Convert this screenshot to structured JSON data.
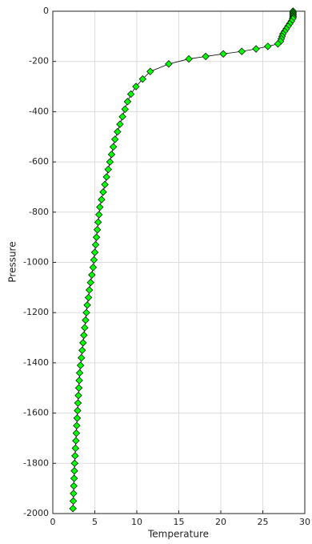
{
  "chart_data": {
    "type": "line",
    "xlabel": "Temperature",
    "ylabel": "Pressure",
    "xlim": [
      0,
      30
    ],
    "xticks": [
      0,
      5,
      10,
      15,
      20,
      25,
      30
    ],
    "ylim": [
      -2000,
      0
    ],
    "yticks": [
      -2000,
      -1800,
      -1600,
      -1400,
      -1200,
      -1000,
      -800,
      -600,
      -400,
      -200,
      0
    ],
    "grid": true,
    "series": [
      {
        "color": "#00ff00",
        "line_color": "#000000",
        "x": [
          28.6,
          28.6,
          28.6,
          28.6,
          28.6,
          28.6,
          28.55,
          28.4,
          28.2,
          28.0,
          27.8,
          27.6,
          27.4,
          27.3,
          27.2,
          27.1,
          26.8,
          25.6,
          24.2,
          22.5,
          20.3,
          18.2,
          16.2,
          13.8,
          11.6,
          10.7,
          9.9,
          9.3,
          8.9,
          8.6,
          8.3,
          8.0,
          7.7,
          7.4,
          7.2,
          7.0,
          6.8,
          6.6,
          6.4,
          6.2,
          6.0,
          5.8,
          5.6,
          5.5,
          5.4,
          5.3,
          5.2,
          5.1,
          5.0,
          4.9,
          4.8,
          4.65,
          4.5,
          4.35,
          4.25,
          4.1,
          4.0,
          3.9,
          3.8,
          3.7,
          3.6,
          3.5,
          3.4,
          3.3,
          3.2,
          3.15,
          3.1,
          3.05,
          3.0,
          2.95,
          2.9,
          2.85,
          2.8,
          2.75,
          2.7,
          2.65,
          2.6,
          2.57,
          2.54,
          2.5,
          2.47,
          2.44,
          2.4
        ],
        "y": [
          0,
          -5,
          -10,
          -15,
          -20,
          -25,
          -30,
          -40,
          -50,
          -60,
          -70,
          -80,
          -90,
          -100,
          -110,
          -120,
          -130,
          -140,
          -150,
          -160,
          -170,
          -180,
          -190,
          -210,
          -240,
          -270,
          -300,
          -330,
          -360,
          -390,
          -420,
          -450,
          -480,
          -510,
          -540,
          -570,
          -600,
          -630,
          -660,
          -690,
          -720,
          -750,
          -780,
          -810,
          -840,
          -870,
          -900,
          -930,
          -960,
          -990,
          -1020,
          -1050,
          -1080,
          -1110,
          -1140,
          -1170,
          -1200,
          -1230,
          -1260,
          -1290,
          -1320,
          -1350,
          -1380,
          -1410,
          -1440,
          -1470,
          -1500,
          -1530,
          -1560,
          -1590,
          -1620,
          -1650,
          -1680,
          -1710,
          -1740,
          -1770,
          -1800,
          -1830,
          -1860,
          -1890,
          -1920,
          -1950,
          -1980
        ]
      }
    ]
  }
}
